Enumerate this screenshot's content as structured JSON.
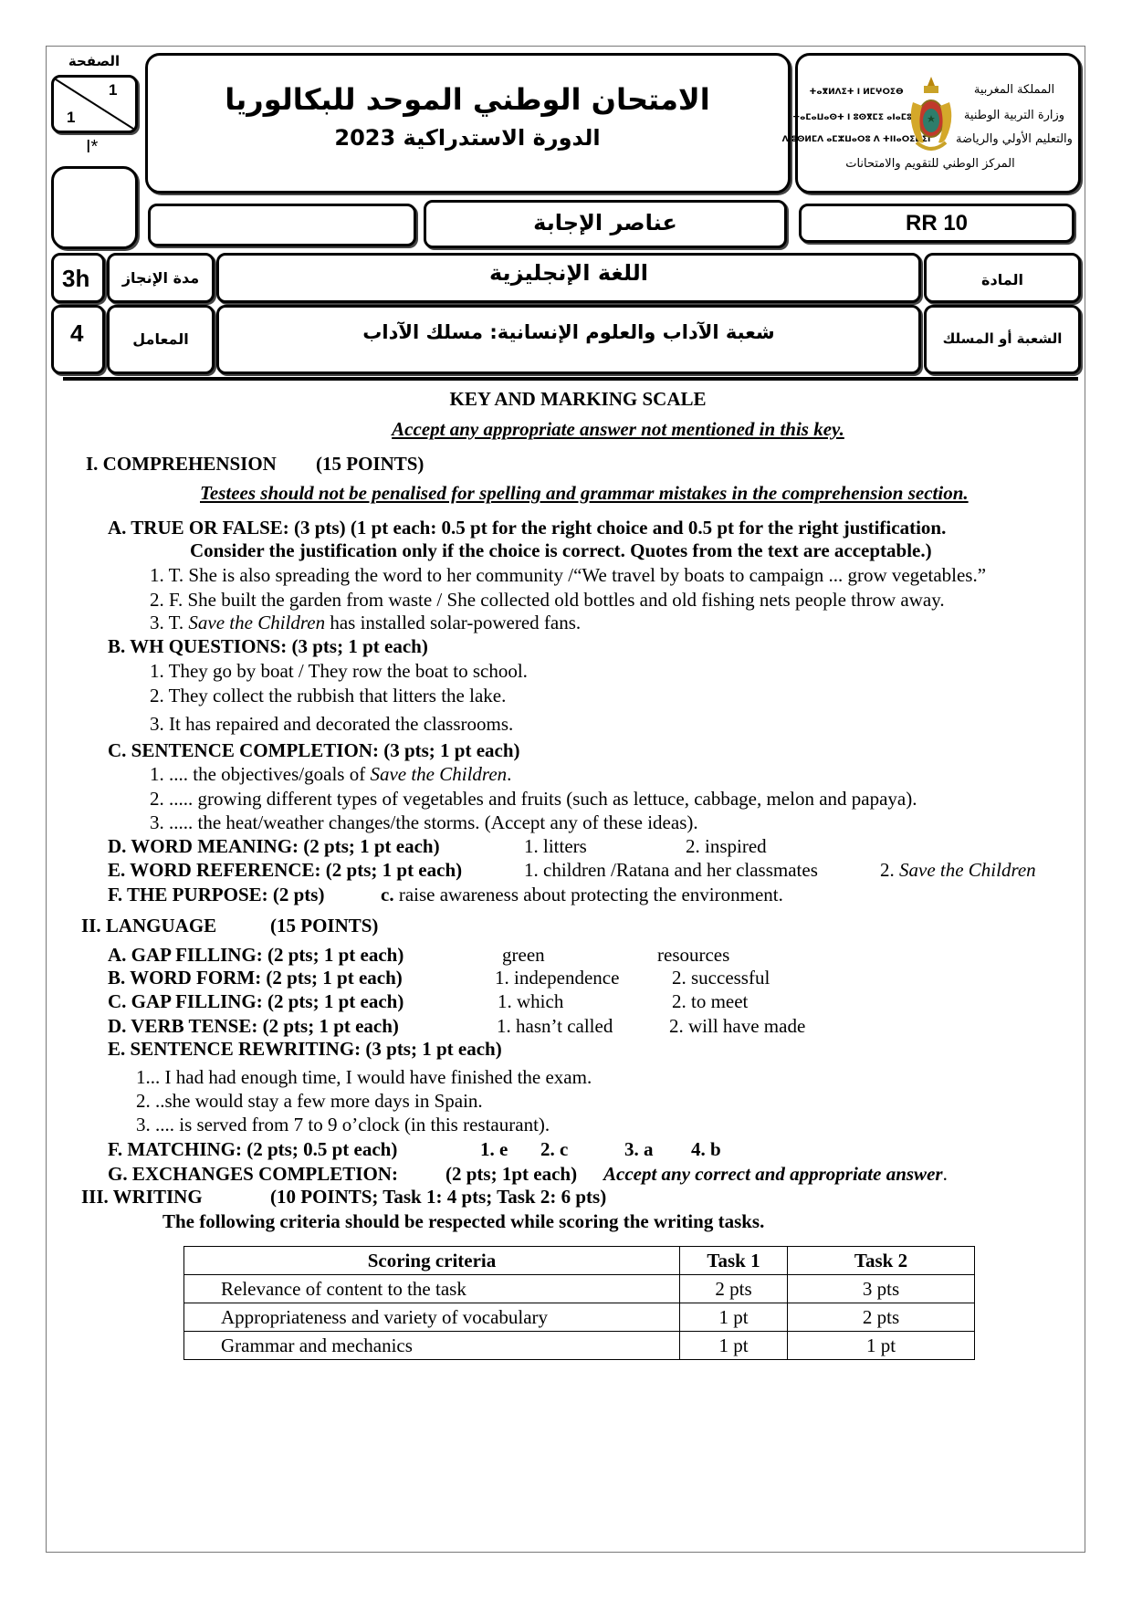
{
  "header": {
    "page_label": "الصفحة",
    "page_current": "1",
    "page_total": "1",
    "page_code": "I*",
    "title": "الامتحان الوطني الموحد للبكالوريا",
    "session": "الدورة الاستدراكية 2023",
    "logo": {
      "arabic_lines": [
        "المملكة المغربية",
        "وزارة التربية الوطنية",
        "والتعليم الأولي والرياضة"
      ],
      "center_line": "المركز الوطني للتقويم والامتحانات",
      "tifinagh_lines": [
        "ⵜⴰⴳⵍⴷⵉⵜ ⵏ ⵍⵎⵖⵔⵉⴱ",
        "ⵜⴰⵎⴰⵡⴰⵙⵜ ⵏ ⵓⵙⴳⵎⵉ ⴰⵏⴰⵎⵓⵔ",
        "ⴷ ⵓⵙⵍⵎⴷ ⴰⵎⵣⵡⴰⵔⵓ ⴷ ⵜⵏⵏⴰⵔⵉⵡⵉⵏ"
      ]
    },
    "doc_type": "عناصر الإجابة",
    "code": "RR 10",
    "duration_value": "3h",
    "duration_label": "مدة الإنجاز",
    "subject": "اللغة الإنجليزية",
    "subject_label": "المادة",
    "coef_value": "4",
    "coef_label": "المعامل",
    "stream": "شعبة الآداب والعلوم الإنسانية: مسلك الآداب",
    "stream_label": "الشعبة أو المسلك"
  },
  "key_title": "KEY AND MARKING SCALE",
  "key_note": "Accept any appropriate answer not mentioned in this key.",
  "comprehension": {
    "title": "I. COMPREHENSION",
    "points": "(15 POINTS)",
    "note": "Testees should not be penalised for spelling and grammar mistakes in the comprehension section.",
    "A": {
      "heading": "A. TRUE OR FALSE:   (3 pts) (1 pt each: 0.5 pt for the right choice and 0.5 pt for the right justification.",
      "heading2": "Consider the justification only if the choice is correct. Quotes from the text are acceptable.)",
      "item1": "1.  T. She is also spreading the word to her community /“We travel by boats to campaign ... grow vegetables.”",
      "item2": "2.  F.  She built the garden from waste / She collected old bottles and old fishing nets people throw away.",
      "item3_pre": "3.  T. ",
      "item3_it": "Save the Children",
      "item3_post": " has installed solar-powered fans."
    },
    "B": {
      "heading": "B.  WH QUESTIONS: (3 pts; 1 pt each)",
      "items": [
        "1. They go by boat / They row the boat to school.",
        "2. They collect the rubbish that litters the lake.",
        "3. It has repaired and decorated the classrooms."
      ]
    },
    "C": {
      "heading": "C.  SENTENCE COMPLETION: (3 pts; 1 pt each)",
      "item1_pre": "1.   ....  the objectives/goals of ",
      "item1_it": "Save the Children",
      "item1_post": ".",
      "item2": "2.   ..... growing different types of vegetables and fruits (such as lettuce, cabbage, melon and papaya).",
      "item3": "3.   .....  the heat/weather changes/the storms. (Accept any of these ideas)."
    },
    "D": {
      "heading": "D.  WORD MEANING:   (2 pts; 1 pt each)",
      "a1": "1.  litters",
      "a2": "2. inspired"
    },
    "E": {
      "heading": "E.  WORD REFERENCE: (2 pts; 1 pt each)",
      "a1": "1. children /Ratana and her classmates",
      "a2_pre": "2. ",
      "a2_it": "Save the Children"
    },
    "F": {
      "heading": "F.  THE PURPOSE: (2 pts)",
      "a_letter": "c.",
      "a_text": " raise awareness about protecting the environment."
    }
  },
  "language": {
    "title": "II. LANGUAGE",
    "points": "(15 POINTS)",
    "A": {
      "heading": "A. GAP FILLING:  (2 pts; 1 pt each)",
      "a1": "green",
      "a2": "resources"
    },
    "B": {
      "heading": "B.  WORD FORM: (2 pts; 1 pt each)",
      "a1": "1. independence",
      "a2": "2. successful"
    },
    "C": {
      "heading": "C. GAP FILLING:  (2 pts; 1 pt each)",
      "a1": "1. which",
      "a2": "2. to meet"
    },
    "D": {
      "heading": "D.  VERB TENSE:  (2 pts; 1 pt each)",
      "a1": "1. hasn’t called",
      "a2": "2. will have made"
    },
    "E": {
      "heading": "E.  SENTENCE REWRITING: (3 pts; 1 pt each)",
      "items": [
        "1... I had had enough time, I would have finished the exam.",
        "2. ..she would stay a few more days in Spain.",
        "3. .... is served from 7 to 9 o’clock (in this restaurant)."
      ]
    },
    "F": {
      "heading": "F. MATCHING:  (2 pts; 0.5 pt each)",
      "answers": [
        "1. e",
        "2. c",
        "3. a",
        "4. b"
      ]
    },
    "G": {
      "heading": "G. EXCHANGES COMPLETION:",
      "rubric": "(2 pts; 1pt each)",
      "note": "Accept any correct and appropriate answer",
      "note_end": "."
    }
  },
  "writing": {
    "title": "III. WRITING",
    "points": "(10   POINTS; Task 1: 4 pts; Task 2: 6 pts)",
    "note": "The following criteria should be respected while scoring the writing tasks.",
    "table": {
      "headers": [
        "Scoring criteria",
        "Task 1",
        "Task 2"
      ],
      "rows": [
        [
          "Relevance of content to the task",
          "2 pts",
          "3 pts"
        ],
        [
          "Appropriateness and variety of vocabulary",
          "1 pt",
          "2 pts"
        ],
        [
          "Grammar and mechanics",
          "1 pt",
          "1 pt"
        ]
      ]
    }
  }
}
